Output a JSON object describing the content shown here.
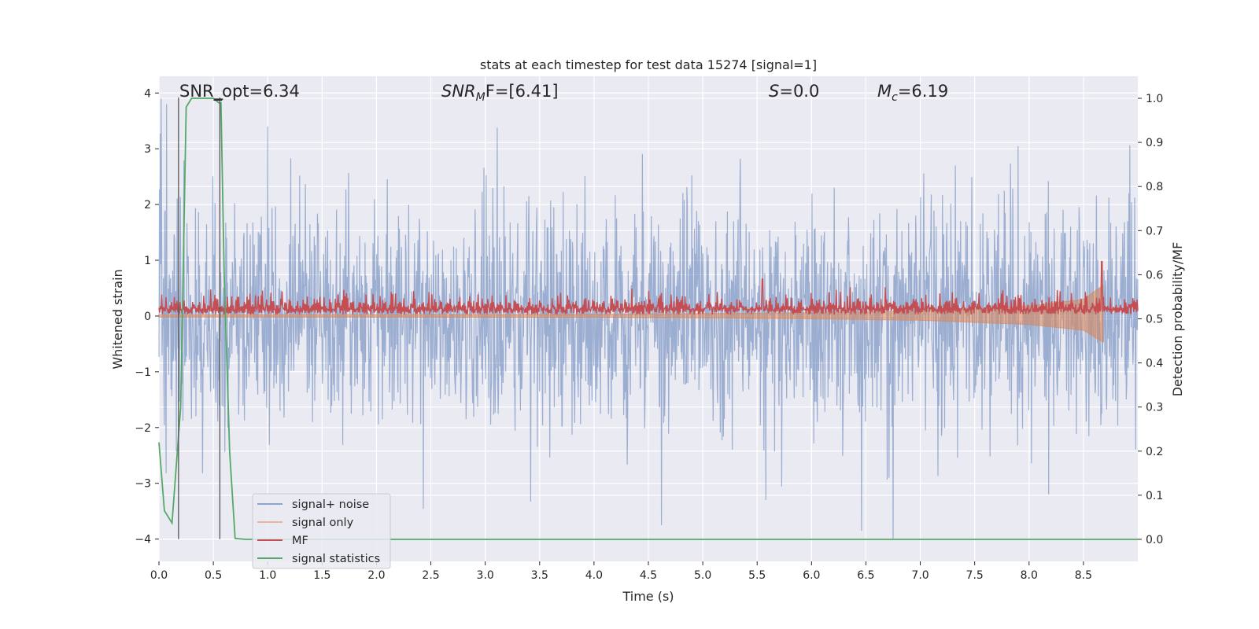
{
  "chart_data": {
    "type": "line",
    "title": "stats at each timestep for test data 15274 [signal=1]",
    "xlabel": "Time (s)",
    "ylabel_left": "Whitened strain",
    "ylabel_right": "Detection probability/MF",
    "xlim": [
      0.0,
      9.0
    ],
    "ylim_left": [
      -4.4,
      4.3
    ],
    "ylim_right": [
      -0.05,
      1.05
    ],
    "x_ticks": [
      "0.0",
      "0.5",
      "1.0",
      "1.5",
      "2.0",
      "2.5",
      "3.0",
      "3.5",
      "4.0",
      "4.5",
      "5.0",
      "5.5",
      "6.0",
      "6.5",
      "7.0",
      "7.5",
      "8.0",
      "8.5"
    ],
    "y_ticks_left": [
      "−4",
      "−3",
      "−2",
      "−1",
      "0",
      "1",
      "2",
      "3",
      "4"
    ],
    "y_ticks_right": [
      "0.0",
      "0.1",
      "0.2",
      "0.3",
      "0.4",
      "0.5",
      "0.6",
      "0.7",
      "0.8",
      "0.9",
      "1.0"
    ],
    "annotations": {
      "snr_opt": "SNR_opt=6.34",
      "snr_mf_main": "SNR",
      "snr_mf_sub": "M",
      "snr_mf_tail": "F=[6.41]",
      "s_sym": "S",
      "s_val": "=0.0",
      "mc_main": "M",
      "mc_sub": "c",
      "mc_val": "=6.19"
    },
    "markers": {
      "vertical_lines_s": [
        0.18,
        0.56
      ],
      "vline_bottom_left_axis": -4.0,
      "vline_top_left_axis": 3.92
    },
    "series": [
      {
        "name": "signal+ noise",
        "axis": "left",
        "color": "#4c72b0",
        "description_stats": {
          "std": 1.0,
          "max": 4.0,
          "min": -4.0
        },
        "peak_points": [
          [
            0.02,
            3.9
          ],
          [
            0.07,
            3.8
          ],
          [
            1.0,
            3.4
          ],
          [
            5.58,
            -3.3
          ],
          [
            6.75,
            -4.0
          ],
          [
            4.62,
            -3.75
          ],
          [
            6.46,
            -3.85
          ],
          [
            8.18,
            -3.2
          ]
        ]
      },
      {
        "name": "signal only",
        "axis": "left",
        "color": "#dd8452",
        "envelope": [
          [
            0.0,
            0.02
          ],
          [
            4.0,
            0.03
          ],
          [
            6.0,
            0.06
          ],
          [
            7.0,
            0.09
          ],
          [
            8.0,
            0.18
          ],
          [
            8.5,
            0.3
          ],
          [
            8.68,
            0.55
          ]
        ]
      },
      {
        "name": "MF",
        "axis": "right",
        "color": "#c44e52",
        "baseline": 0.52,
        "spike_points": [
          [
            5.55,
            0.59
          ],
          [
            8.67,
            0.63
          ]
        ]
      },
      {
        "name": "signal statistics",
        "axis": "right",
        "color": "#55a868",
        "x": [
          0.0,
          0.05,
          0.12,
          0.2,
          0.25,
          0.3,
          0.4,
          0.5,
          0.55,
          0.57,
          0.6,
          0.65,
          0.7,
          0.8,
          1.0,
          3.0,
          6.0,
          8.5,
          9.0
        ],
        "y": [
          0.22,
          0.065,
          0.037,
          0.3,
          0.98,
          1.0,
          1.0,
          1.0,
          0.99,
          0.99,
          0.6,
          0.2,
          0.002,
          0.0,
          0.0,
          0.0,
          0.0,
          0.0,
          0.0
        ]
      }
    ],
    "legend": {
      "location": "lower-left",
      "entries": [
        {
          "label": "signal+ noise",
          "color": "#8ca3cf"
        },
        {
          "label": "signal only",
          "color": "#e9b49a"
        },
        {
          "label": "MF",
          "color": "#c44e52"
        },
        {
          "label": "signal statistics",
          "color": "#55a868"
        }
      ]
    }
  }
}
